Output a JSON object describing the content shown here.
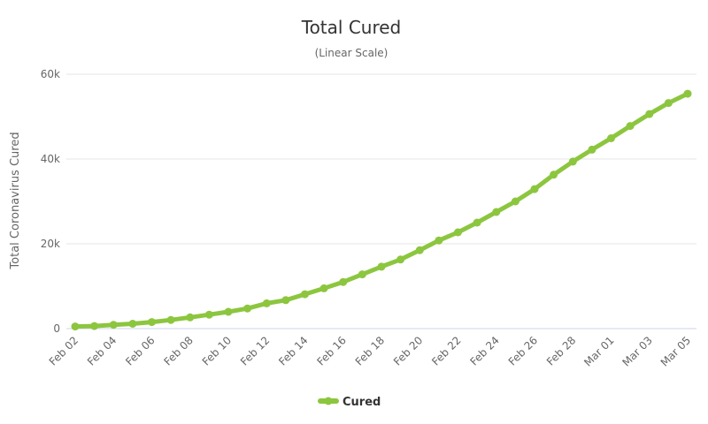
{
  "chart_data": {
    "type": "line",
    "title": "Total Cured",
    "subtitle": "(Linear Scale)",
    "xlabel": "",
    "ylabel": "Total Coronavirus Cured",
    "ylim": [
      0,
      60000
    ],
    "yticks": [
      "0",
      "20k",
      "40k",
      "60k"
    ],
    "grid": true,
    "legend_position": "bottom-center",
    "color": "#8cc63f",
    "x": [
      "Feb 02",
      "Feb 03",
      "Feb 04",
      "Feb 05",
      "Feb 06",
      "Feb 07",
      "Feb 08",
      "Feb 09",
      "Feb 10",
      "Feb 11",
      "Feb 12",
      "Feb 13",
      "Feb 14",
      "Feb 15",
      "Feb 16",
      "Feb 17",
      "Feb 18",
      "Feb 19",
      "Feb 20",
      "Feb 21",
      "Feb 22",
      "Feb 23",
      "Feb 24",
      "Feb 25",
      "Feb 26",
      "Feb 27",
      "Feb 28",
      "Feb 29",
      "Mar 01",
      "Mar 02",
      "Mar 03",
      "Mar 04",
      "Mar 05"
    ],
    "xtick_labels": [
      "Feb 02",
      "Feb 04",
      "Feb 06",
      "Feb 08",
      "Feb 10",
      "Feb 12",
      "Feb 14",
      "Feb 16",
      "Feb 18",
      "Feb 20",
      "Feb 22",
      "Feb 24",
      "Feb 26",
      "Feb 28",
      "Mar 01",
      "Mar 03",
      "Mar 05"
    ],
    "series": [
      {
        "name": "Cured",
        "values": [
          500,
          600,
          900,
          1150,
          1550,
          2050,
          2650,
          3300,
          3950,
          4750,
          5950,
          6700,
          8100,
          9500,
          11000,
          12800,
          14600,
          16300,
          18500,
          20800,
          22700,
          25000,
          27500,
          30000,
          32900,
          36300,
          39400,
          42200,
          44900,
          47800,
          50600,
          53200,
          55400
        ]
      }
    ]
  }
}
